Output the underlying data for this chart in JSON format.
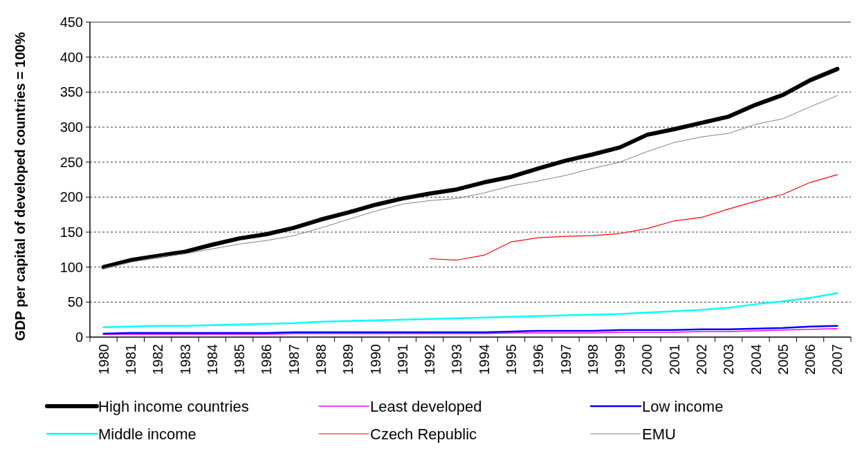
{
  "chart_data": {
    "type": "line",
    "ylabel": "GDP per capital of developed countries = 100%",
    "categories": [
      "1980",
      "1981",
      "1982",
      "1983",
      "1984",
      "1985",
      "1986",
      "1987",
      "1988",
      "1989",
      "1990",
      "1991",
      "1992",
      "1993",
      "1994",
      "1995",
      "1996",
      "1997",
      "1998",
      "1999",
      "2000",
      "2001",
      "2002",
      "2003",
      "2004",
      "2005",
      "2006",
      "2007"
    ],
    "ylim": [
      0,
      450
    ],
    "yticks": [
      0,
      50,
      100,
      150,
      200,
      250,
      300,
      350,
      400,
      450
    ],
    "grid": "y",
    "legend": "bottom",
    "marker": "none",
    "line_style": "solid",
    "series": [
      {
        "name": "High income countries",
        "color": "#000000",
        "values": [
          100,
          110,
          116,
          122,
          132,
          141,
          147,
          156,
          168,
          178,
          189,
          198,
          205,
          211,
          221,
          229,
          241,
          252,
          261,
          271,
          289,
          297,
          306,
          315,
          332,
          346,
          367,
          383
        ]
      },
      {
        "name": "Least developed",
        "color": "#ff00ff",
        "values": [
          4,
          4,
          4,
          4,
          4,
          4,
          4,
          5,
          5,
          5,
          5,
          5,
          5,
          5,
          5,
          6,
          6,
          6,
          6,
          7,
          7,
          7,
          8,
          8,
          9,
          10,
          11,
          12
        ]
      },
      {
        "name": "Low income",
        "color": "#0000ff",
        "values": [
          5,
          6,
          6,
          6,
          6,
          6,
          6,
          7,
          7,
          7,
          7,
          7,
          7,
          7,
          7,
          8,
          9,
          9,
          9,
          10,
          10,
          10,
          11,
          11,
          12,
          13,
          15,
          16
        ]
      },
      {
        "name": "Middle income",
        "color": "#00ffff",
        "values": [
          14,
          15,
          16,
          16,
          17,
          18,
          19,
          20,
          22,
          23,
          24,
          25,
          26,
          27,
          28,
          29,
          30,
          31,
          32,
          33,
          35,
          37,
          39,
          42,
          47,
          51,
          56,
          63
        ]
      },
      {
        "name": "Czech Republic",
        "color": "#ff0000",
        "values": [
          null,
          null,
          null,
          null,
          null,
          null,
          null,
          null,
          null,
          null,
          null,
          null,
          112,
          110,
          117,
          136,
          142,
          144,
          145,
          148,
          155,
          166,
          171,
          183,
          194,
          204,
          221,
          232
        ]
      },
      {
        "name": "EMU",
        "color": "#808080",
        "values": [
          98,
          107,
          114,
          119,
          126,
          133,
          138,
          145,
          156,
          168,
          180,
          190,
          195,
          198,
          206,
          216,
          223,
          231,
          241,
          250,
          265,
          278,
          286,
          291,
          304,
          312,
          329,
          345
        ]
      }
    ]
  }
}
